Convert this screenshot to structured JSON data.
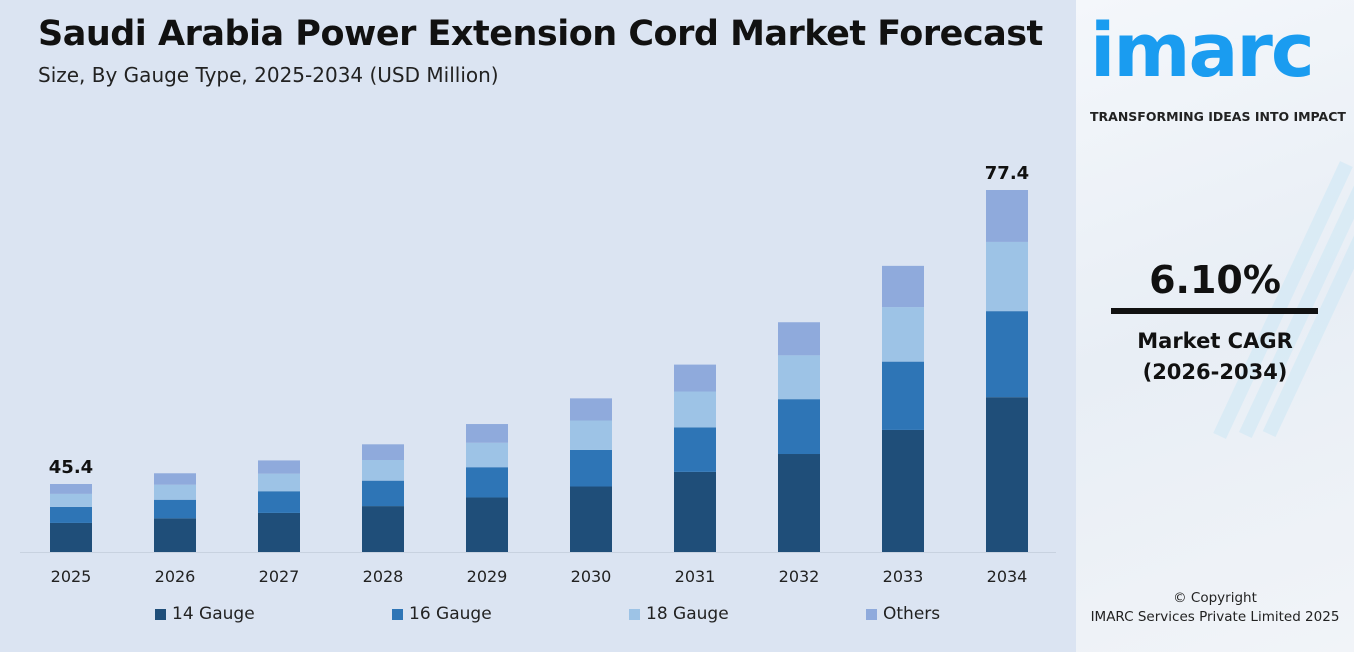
{
  "header": {
    "title": "Saudi Arabia Power Extension Cord Market Forecast",
    "subtitle": "Size, By Gauge Type, 2025-2034 (USD Million)"
  },
  "brand": {
    "logo": "imarc",
    "tagline": "TRANSFORMING IDEAS INTO IMPACT",
    "color": "#1a9cf0"
  },
  "cagr": {
    "value": "6.10%",
    "label_line1": "Market CAGR",
    "label_line2": "(2026-2034)"
  },
  "footer": {
    "copyright_line1": "© Copyright",
    "copyright_line2": "IMARC Services Private Limited 2025"
  },
  "chart_data": {
    "type": "bar",
    "stacked": true,
    "title": "Saudi Arabia Power Extension Cord Market Forecast",
    "subtitle": "Size, By Gauge Type, 2025-2034 (USD Million)",
    "categories": [
      "2025",
      "2026",
      "2027",
      "2028",
      "2029",
      "2030",
      "2031",
      "2032",
      "2033",
      "2034"
    ],
    "series": [
      {
        "name": "14 Gauge",
        "color": "#1f4e79",
        "values": [
          19.4,
          20.6,
          21.8,
          23.1,
          24.5,
          26.0,
          27.7,
          29.3,
          31.1,
          33.1
        ]
      },
      {
        "name": "16 Gauge",
        "color": "#2e75b6",
        "values": [
          10.7,
          11.4,
          12.1,
          12.8,
          13.6,
          14.5,
          15.4,
          16.4,
          17.4,
          18.4
        ]
      },
      {
        "name": "18 Gauge",
        "color": "#9dc3e6",
        "values": [
          8.7,
          9.2,
          9.8,
          10.4,
          11.0,
          11.7,
          12.4,
          13.1,
          13.9,
          14.8
        ]
      },
      {
        "name": "Others",
        "color": "#8faadc",
        "values": [
          6.6,
          7.0,
          7.4,
          7.9,
          8.4,
          8.8,
          9.3,
          9.9,
          10.5,
          11.1
        ]
      }
    ],
    "totals": [
      45.4,
      48.2,
      51.1,
      54.2,
      57.5,
      61.0,
      64.8,
      68.7,
      72.9,
      77.4
    ],
    "data_labels": [
      {
        "category": "2025",
        "text": "45.4"
      },
      {
        "category": "2034",
        "text": "77.4"
      }
    ],
    "xlabel": "",
    "ylabel": "",
    "grid": false,
    "legend": "bottom"
  }
}
